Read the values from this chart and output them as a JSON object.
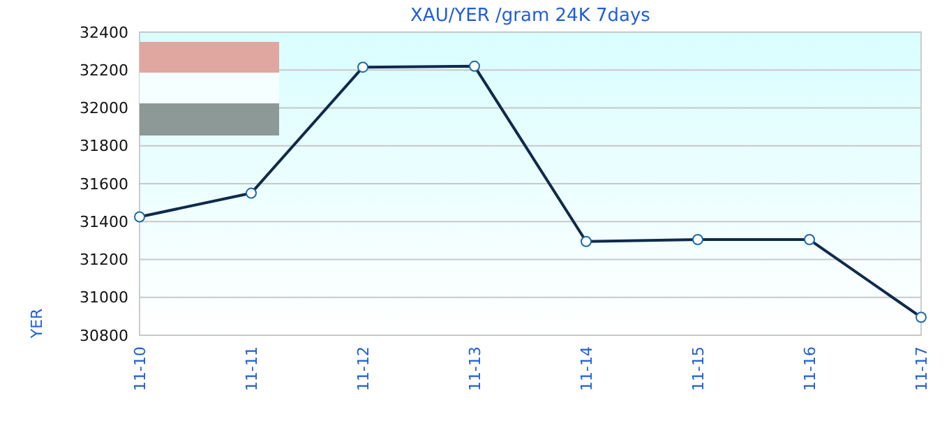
{
  "chart_data": {
    "type": "line",
    "title": "XAU/YER /gram 24K 7days",
    "ylabel": "YER",
    "categories": [
      "11-10",
      "11-11",
      "11-12",
      "11-13",
      "11-14",
      "11-15",
      "11-16",
      "11-17"
    ],
    "series": [
      {
        "color": "#0f2a4a",
        "values": [
          31425,
          31550,
          32215,
          32220,
          31295,
          31305,
          31305,
          30895
        ]
      }
    ],
    "ylim": [
      30800,
      32400
    ],
    "yticks": [
      30800,
      31000,
      31200,
      31400,
      31600,
      31800,
      32000,
      32200,
      32400
    ],
    "grid": "y",
    "marker": "circle",
    "line_style": "solid"
  }
}
